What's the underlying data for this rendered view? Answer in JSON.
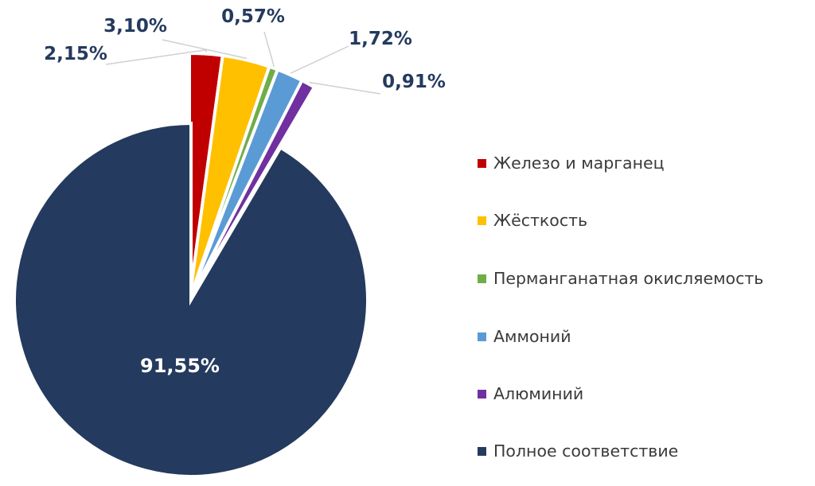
{
  "chart_data": {
    "type": "pie",
    "title": "",
    "legend_position": "right",
    "slices": [
      {
        "label": "Железо и марганец",
        "value": 2.15,
        "value_label": "2,15%",
        "color": "#c00000"
      },
      {
        "label": "Жёсткость",
        "value": 3.1,
        "value_label": "3,10%",
        "color": "#ffc000"
      },
      {
        "label": "Перманганатная окисляемость",
        "value": 0.57,
        "value_label": "0,57%",
        "color": "#70ad47"
      },
      {
        "label": "Аммоний",
        "value": 1.72,
        "value_label": "1,72%",
        "color": "#5b9bd5"
      },
      {
        "label": "Алюминий",
        "value": 0.91,
        "value_label": "0,91%",
        "color": "#7030a0"
      },
      {
        "label": "Полное соответствие",
        "value": 91.55,
        "value_label": "91,55%",
        "color": "#243a5e"
      }
    ]
  }
}
